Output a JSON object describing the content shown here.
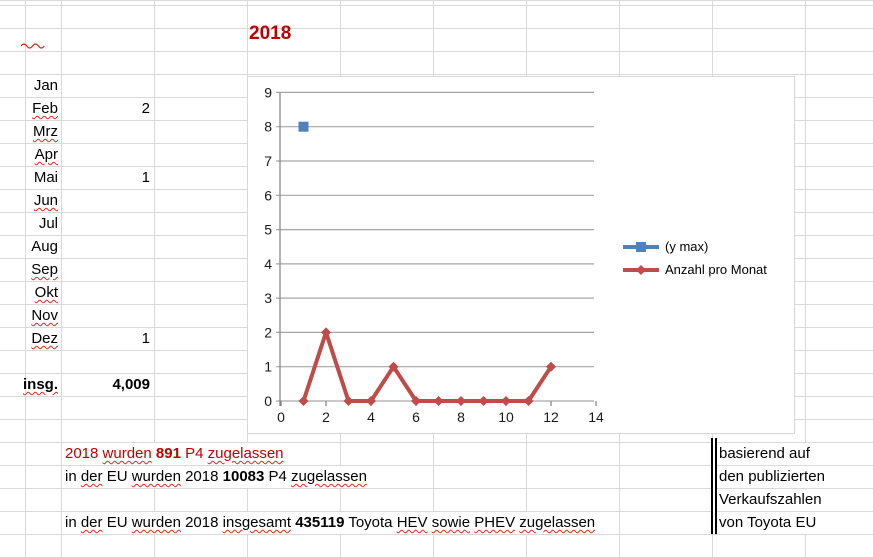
{
  "title": "2018",
  "table": {
    "rows": [
      {
        "month": "Jan",
        "value": "",
        "misspelled": false
      },
      {
        "month": "Feb",
        "value": "2",
        "misspelled": true
      },
      {
        "month": "Mrz",
        "value": "",
        "misspelled": true
      },
      {
        "month": "Apr",
        "value": "",
        "misspelled": true
      },
      {
        "month": "Mai",
        "value": "1",
        "misspelled": false
      },
      {
        "month": "Jun",
        "value": "",
        "misspelled": true
      },
      {
        "month": "Jul",
        "value": "",
        "misspelled": false
      },
      {
        "month": "Aug",
        "value": "",
        "misspelled": false
      },
      {
        "month": "Sep",
        "value": "",
        "misspelled": true
      },
      {
        "month": "Okt",
        "value": "",
        "misspelled": true
      },
      {
        "month": "Nov",
        "value": "",
        "misspelled": true
      },
      {
        "month": "Dez",
        "value": "1",
        "misspelled": true
      }
    ],
    "total_label": "insg.",
    "total_value": "4,009"
  },
  "chart_data": {
    "type": "line",
    "title": "",
    "xlabel": "",
    "ylabel": "",
    "xlim": [
      0,
      14
    ],
    "ylim": [
      0,
      9
    ],
    "x_ticks": [
      0,
      2,
      4,
      6,
      8,
      10,
      12,
      14
    ],
    "y_ticks": [
      0,
      1,
      2,
      3,
      4,
      5,
      6,
      7,
      8,
      9
    ],
    "grid": true,
    "legend_position": "right",
    "series": [
      {
        "name": "(y max)",
        "color": "#4F81BD",
        "marker": "square",
        "x": [
          1
        ],
        "y": [
          8
        ]
      },
      {
        "name": "Anzahl pro Monat",
        "color": "#BE4C48",
        "marker": "diamond",
        "x": [
          1,
          2,
          3,
          4,
          5,
          6,
          7,
          8,
          9,
          10,
          11,
          12
        ],
        "y": [
          0,
          2,
          0,
          0,
          1,
          0,
          0,
          0,
          0,
          0,
          0,
          1
        ]
      }
    ]
  },
  "notes": [
    {
      "color": "#C00000",
      "segments": [
        {
          "t": "2018 "
        },
        {
          "t": "wurden",
          "wavy": true
        },
        {
          "t": " "
        },
        {
          "t": "891",
          "bold": true
        },
        {
          "t": " P4 "
        },
        {
          "t": "zugelassen",
          "wavy": true
        }
      ]
    },
    {
      "color": "#000000",
      "segments": [
        {
          "t": "in "
        },
        {
          "t": "der",
          "wavy": true
        },
        {
          "t": " EU "
        },
        {
          "t": "wurden",
          "wavy": true
        },
        {
          "t": " 2018 "
        },
        {
          "t": "10083",
          "bold": true
        },
        {
          "t": " P4 "
        },
        {
          "t": "zugelassen",
          "wavy": true
        }
      ]
    },
    {
      "color": "#000000",
      "segments": [
        {
          "t": "in "
        },
        {
          "t": "der",
          "wavy": true
        },
        {
          "t": " EU "
        },
        {
          "t": "wurden",
          "wavy": true
        },
        {
          "t": " 2018 "
        },
        {
          "t": "insgesamt",
          "wavy": true
        },
        {
          "t": " "
        },
        {
          "t": "435119",
          "bold": true
        },
        {
          "t": " Toyota "
        },
        {
          "t": "HEV",
          "wavy": true
        },
        {
          "t": " "
        },
        {
          "t": "sowie",
          "wavy": true
        },
        {
          "t": " "
        },
        {
          "t": "PHEV",
          "wavy": true
        },
        {
          "t": " "
        },
        {
          "t": "zugelassen",
          "wavy": true
        }
      ]
    }
  ],
  "side_note": {
    "lines": [
      "basierend auf",
      "den publizierten",
      "Verkaufszahlen",
      "von Toyota EU"
    ]
  },
  "colors": {
    "title_red": "#C00000",
    "series_blue": "#4F81BD",
    "series_red": "#BE4C48",
    "chart_grid": "#A6A6A6",
    "chart_axis": "#808080",
    "sheet_grid": "#D9D9D9"
  }
}
